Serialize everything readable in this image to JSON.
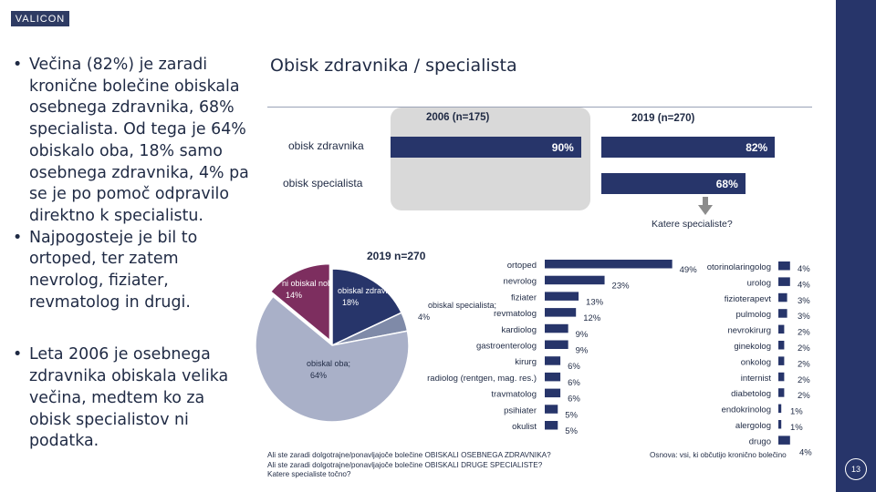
{
  "header": {
    "logo": "VALICON"
  },
  "bullets": [
    "Večina (82%) je zaradi kronične bolečine obiskala osebnega zdravnika, 68% specialista. Od tega je 64% obiskalo oba, 18% samo osebnega zdravnika, 4% pa se je po pomoč odpravilo direktno k specialistu.",
    "Najpogosteje je bil to ortoped, ter zatem nevrolog, fiziater, revmatolog in drugi.",
    "Leta 2006 je osebnega zdravnika obiskala velika večina, medtem ko za obisk specialistov ni podatka."
  ],
  "page_title": "Obisk zdravnika / specialista",
  "page_number": "13",
  "footnotes": {
    "questions": [
      "Ali ste zaradi dolgotrajne/ponavljajoče bolečine OBISKALI OSEBNEGA ZDRAVNIKA?",
      "Ali ste zaradi dolgotrajne/ponavljajoče bolečine OBISKALI DRUGE SPECIALISTE?",
      "Katere specialiste točno?"
    ],
    "base": "Osnova: vsi, ki občutijo kronično bolečino"
  },
  "colors": {
    "navy": "#27356a",
    "maroon": "#7d2e5f",
    "slate": "#7f8aa8",
    "gray_blue": "#a9b0c8",
    "panel_gray": "#d9d9d9"
  },
  "chart_data": [
    {
      "type": "bar",
      "orientation": "horizontal",
      "categories": [
        "obisk zdravnika",
        "obisk specialista"
      ],
      "series": [
        {
          "name": "2006 (n=175)",
          "values": [
            90,
            null
          ],
          "value_labels": [
            "90%",
            ""
          ]
        },
        {
          "name": "2019 (n=270)",
          "values": [
            82,
            68
          ],
          "value_labels": [
            "82%",
            "68%"
          ]
        }
      ],
      "annotation": "Katere specialiste?"
    },
    {
      "type": "pie",
      "title": "2019 n=270",
      "slices": [
        {
          "label": "ni obiskal nobenega;",
          "value": 14,
          "value_label": "14%",
          "color": "#7d2e5f"
        },
        {
          "label": "obiskal zdravnika;",
          "value": 18,
          "value_label": "18%",
          "color": "#27356a"
        },
        {
          "label": "obiskal specialista;",
          "value": 4,
          "value_label": "4%",
          "color": "#7f8aa8"
        },
        {
          "label": "obiskal oba;",
          "value": 64,
          "value_label": "64%",
          "color": "#a9b0c8"
        }
      ]
    },
    {
      "type": "bar",
      "orientation": "horizontal",
      "categories": [
        "ortoped",
        "nevrolog",
        "fiziater",
        "revmatolog",
        "kardiolog",
        "gastroenterolog",
        "kirurg",
        "radiolog (rentgen, mag. res.)",
        "travmatolog",
        "psihiater",
        "okulist",
        "otorinolaringolog",
        "urolog",
        "fizioterapevt",
        "pulmolog",
        "nevrokirurg",
        "ginekolog",
        "onkolog",
        "internist",
        "diabetolog",
        "endokrinolog",
        "alergolog",
        "drugo"
      ],
      "values": [
        49,
        23,
        13,
        12,
        9,
        9,
        6,
        6,
        6,
        5,
        5,
        4,
        4,
        3,
        3,
        2,
        2,
        2,
        2,
        2,
        1,
        1,
        4
      ],
      "value_labels": [
        "49%",
        "23%",
        "13%",
        "12%",
        "9%",
        "9%",
        "6%",
        "6%",
        "6%",
        "5%",
        "5%",
        "4%",
        "4%",
        "3%",
        "3%",
        "2%",
        "2%",
        "2%",
        "2%",
        "2%",
        "1%",
        "1%",
        "4%"
      ]
    }
  ]
}
